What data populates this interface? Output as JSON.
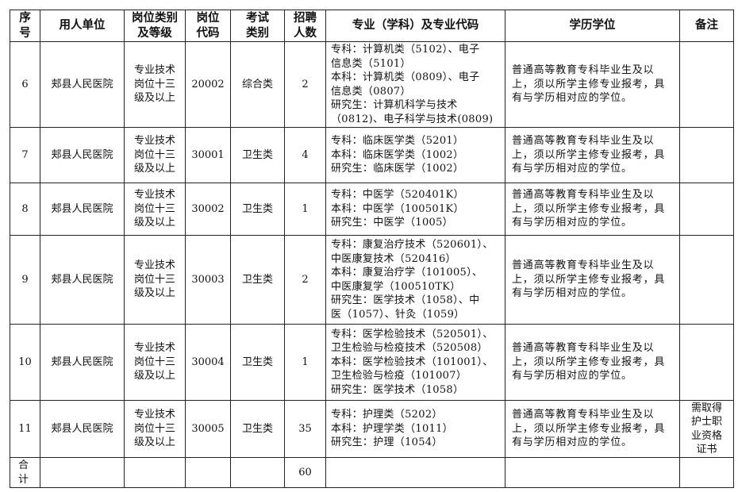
{
  "headers": [
    "序\n号",
    "用人单位",
    "岗位类别\n及等级",
    "岗位\n代码",
    "考试\n类别",
    "招聘\n人数",
    "专业（学科）及专业代码",
    "学历学位",
    "备注"
  ],
  "rows": [
    {
      "no": "6",
      "unit": "郏县人民医院",
      "level": "专业技术\n岗位十三\n级及以上",
      "code": "20002",
      "exam": "综合类",
      "count": "2",
      "major": "专科：计算机类（5102）、电子\n信息类（5101）\n本科：计算机类（0809）、电子\n信息类（0807）\n研究生：计算机科学与技术\n（0812)、电子科学与技术(0809)",
      "edu": "普通高等教育专科毕业生及以\n上，须以所学主修专业报考，具\n有与学历相对应的学位。",
      "note": ""
    },
    {
      "no": "7",
      "unit": "郏县人民医院",
      "level": "专业技术\n岗位十三\n级及以上",
      "code": "30001",
      "exam": "卫生类",
      "count": "4",
      "major": "专科：临床医学类（5201）\n本科：临床医学类（1002）\n研究生：临床医学（1002）",
      "edu": "普通高等教育专科毕业生及以\n上，须以所学主修专业报考，具\n有与学历相对应的学位。",
      "note": ""
    },
    {
      "no": "8",
      "unit": "郏县人民医院",
      "level": "专业技术\n岗位十三\n级及以上",
      "code": "30002",
      "exam": "卫生类",
      "count": "1",
      "major": "专科：中医学（520401K）\n本科：中医学（100501K）\n研究生：中医学（1005）",
      "edu": "普通高等教育专科毕业生及以\n上，须以所学主修专业报考，具\n有与学历相对应的学位。",
      "note": ""
    },
    {
      "no": "9",
      "unit": "郏县人民医院",
      "level": "专业技术\n岗位十三\n级及以上",
      "code": "30003",
      "exam": "卫生类",
      "count": "2",
      "major": "专科：康复治疗技术（520601）、\n中医康复技术（520416）\n本科：康复治疗学（101005）、\n中医康复学（100510TK）\n研究生：医学技术（1058）、中\n医（1057）、针灸（1059）",
      "edu": "普通高等教育专科毕业生及以\n上，须以所学主修专业报考，具\n有与学历相对应的学位。",
      "note": ""
    },
    {
      "no": "10",
      "unit": "郏县人民医院",
      "level": "专业技术\n岗位十三\n级及以上",
      "code": "30004",
      "exam": "卫生类",
      "count": "1",
      "major": "专科：医学检验技术（520501）、\n卫生检验与检疫技术（520508）\n本科：医学检验技术（101001）、\n卫生检验与检疫（101007）\n研究生：医学技术（1058）",
      "edu": "普通高等教育专科毕业生及以\n上，须以所学主修专业报考，具\n有与学历相对应的学位。",
      "note": ""
    },
    {
      "no": "11",
      "unit": "郏县人民医院",
      "level": "专业技术\n岗位十三\n级及以上",
      "code": "30005",
      "exam": "卫生类",
      "count": "35",
      "major": "专科：护理类（5202）\n本科：护理学类（1011）\n研究生：护理（1054）",
      "edu": "普通高等教育专科毕业生及以\n上，须以所学主修专业报考，具\n有与学历相对应的学位。",
      "note": "需取得\n护士职\n业资格\n证书"
    }
  ],
  "total": {
    "label": "合\n计",
    "count": "60"
  }
}
